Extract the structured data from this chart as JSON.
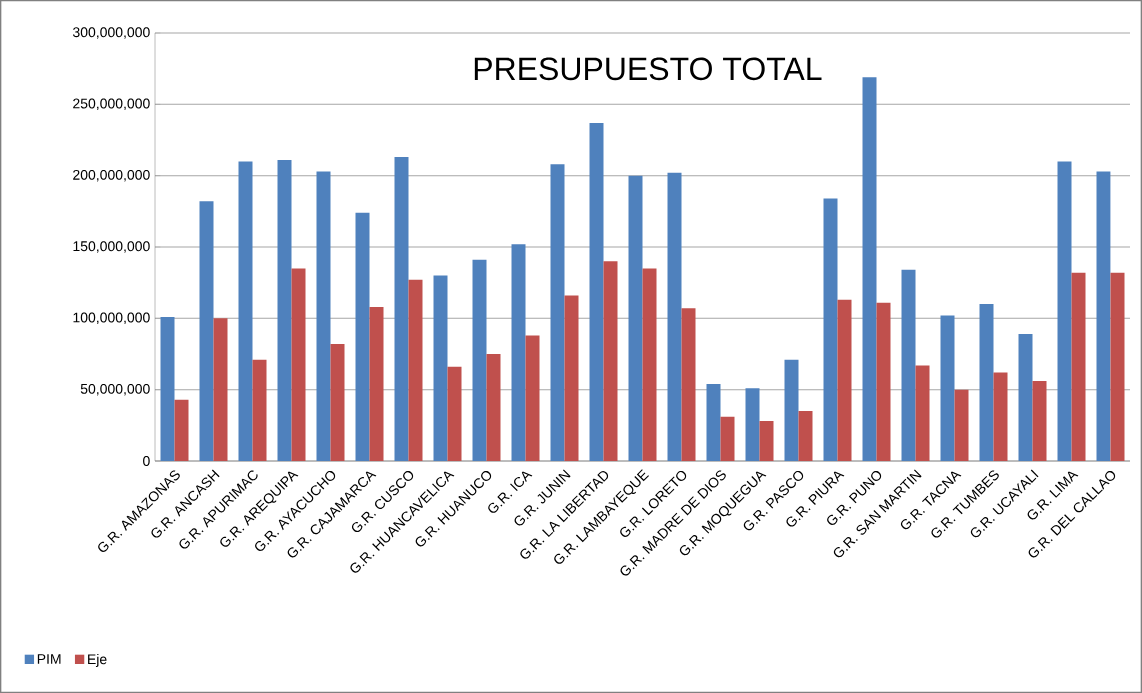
{
  "chart_data": {
    "type": "bar",
    "title": "PRESUPUESTO TOTAL",
    "categories": [
      "G.R. AMAZONAS",
      "G.R. ANCASH",
      "G.R. APURIMAC",
      "G.R. AREQUIPA",
      "G.R. AYACUCHO",
      "G.R. CAJAMARCA",
      "G.R. CUSCO",
      "G.R. HUANCAVELICA",
      "G.R. HUANUCO",
      "G.R. ICA",
      "G.R. JUNIN",
      "G.R. LA LIBERTAD",
      "G.R. LAMBAYEQUE",
      "G.R. LORETO",
      "G.R. MADRE DE DIOS",
      "G.R. MOQUEGUA",
      "G.R. PASCO",
      "G.R. PIURA",
      "G.R. PUNO",
      "G.R. SAN MARTIN",
      "G.R. TACNA",
      "G.R. TUMBES",
      "G.R. UCAYALI",
      "G.R. LIMA",
      "G.R. DEL CALLAO"
    ],
    "series": [
      {
        "name": "PIM",
        "color": "#4f81bd",
        "values": [
          101000000,
          182000000,
          210000000,
          211000000,
          203000000,
          174000000,
          213000000,
          130000000,
          141000000,
          152000000,
          208000000,
          237000000,
          200000000,
          202000000,
          54000000,
          51000000,
          71000000,
          184000000,
          269000000,
          134000000,
          102000000,
          110000000,
          89000000,
          210000000,
          203000000
        ]
      },
      {
        "name": "Eje",
        "color": "#c0504d",
        "values": [
          43000000,
          100000000,
          71000000,
          135000000,
          82000000,
          108000000,
          127000000,
          66000000,
          75000000,
          88000000,
          116000000,
          140000000,
          135000000,
          107000000,
          31000000,
          28000000,
          35000000,
          113000000,
          111000000,
          67000000,
          50000000,
          62000000,
          56000000,
          132000000,
          132000000
        ]
      }
    ],
    "ylim": [
      0,
      300000000
    ],
    "yticks": [
      0,
      {
        "value": 50000000,
        "label": "50,000,000"
      },
      {
        "value": 100000000,
        "label": "100,000,000"
      },
      {
        "value": 150000000,
        "label": "150,000,000"
      },
      {
        "value": 200000000,
        "label": "200,000,000"
      },
      {
        "value": 250000000,
        "label": "250,000,000"
      },
      {
        "value": 300000000,
        "label": "300,000,000"
      }
    ],
    "grid": "y",
    "legend": "bottom left"
  }
}
